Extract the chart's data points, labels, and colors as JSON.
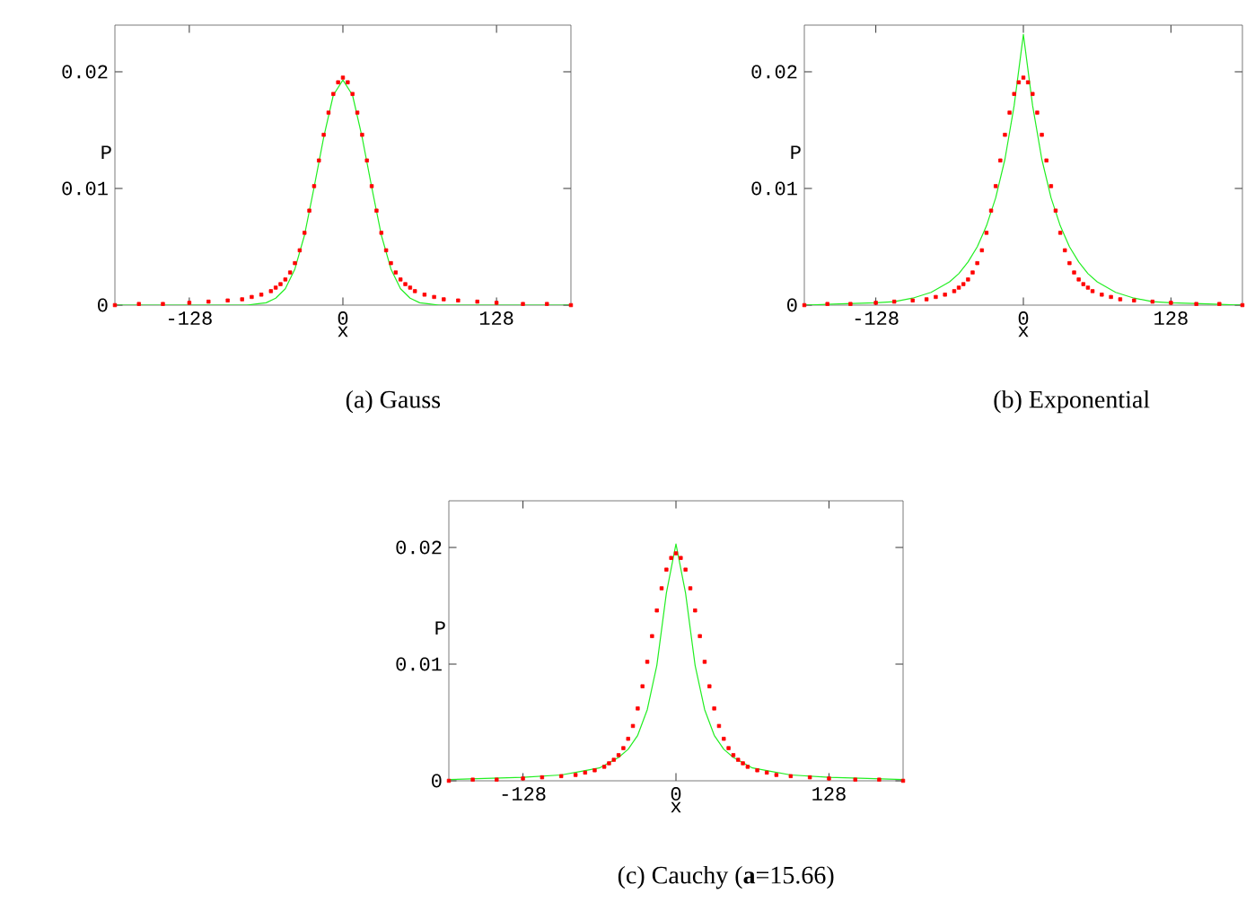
{
  "chart_data": [
    {
      "type": "line",
      "title": "(a) Gauss",
      "xlabel": "x",
      "ylabel": "P",
      "xlim": [
        -190,
        190
      ],
      "ylim": [
        0,
        0.024
      ],
      "xticks": [
        -128,
        0,
        128
      ],
      "yticks": [
        0,
        0.01,
        0.02
      ],
      "series": [
        {
          "type": "scatter",
          "marker": "square",
          "color": "#ff0000",
          "x": [
            -190,
            -170,
            -150,
            -128,
            -112,
            -96,
            -84,
            -76,
            -68,
            -60,
            -56,
            -52,
            -48,
            -44,
            -40,
            -36,
            -32,
            -28,
            -24,
            -20,
            -16,
            -12,
            -8,
            -4,
            0,
            4,
            8,
            12,
            16,
            20,
            24,
            28,
            32,
            36,
            40,
            44,
            48,
            52,
            56,
            60,
            68,
            76,
            84,
            96,
            112,
            128,
            150,
            170,
            190
          ],
          "values": [
            0,
            0.0001,
            0.0001,
            0.0002,
            0.0003,
            0.0004,
            0.0005,
            0.0007,
            0.0009,
            0.0012,
            0.0015,
            0.0018,
            0.0022,
            0.0028,
            0.0036,
            0.0047,
            0.0062,
            0.0081,
            0.0102,
            0.0124,
            0.0146,
            0.0165,
            0.0181,
            0.0191,
            0.0195,
            0.0191,
            0.0181,
            0.0165,
            0.0146,
            0.0124,
            0.0102,
            0.0081,
            0.0062,
            0.0047,
            0.0036,
            0.0028,
            0.0022,
            0.0018,
            0.0015,
            0.0012,
            0.0009,
            0.0007,
            0.0005,
            0.0004,
            0.0003,
            0.0002,
            0.0001,
            0.0001,
            0
          ]
        },
        {
          "color": "#22ee22",
          "x": [
            -190,
            -80,
            -72,
            -64,
            -56,
            -48,
            -40,
            -32,
            -24,
            -16,
            -8,
            0,
            8,
            16,
            24,
            32,
            40,
            48,
            56,
            64,
            72,
            80,
            190
          ],
          "values": [
            0,
            0,
            0.0001,
            0.0002,
            0.0006,
            0.0014,
            0.0031,
            0.006,
            0.0101,
            0.0144,
            0.018,
            0.0193,
            0.018,
            0.0144,
            0.0101,
            0.006,
            0.0031,
            0.0014,
            0.0006,
            0.0002,
            0.0001,
            0,
            0
          ]
        }
      ]
    },
    {
      "type": "line",
      "title": "(b) Exponential",
      "xlabel": "x",
      "ylabel": "P",
      "xlim": [
        -190,
        190
      ],
      "ylim": [
        0,
        0.024
      ],
      "xticks": [
        -128,
        0,
        128
      ],
      "yticks": [
        0,
        0.01,
        0.02
      ],
      "series": [
        {
          "type": "scatter",
          "marker": "square",
          "color": "#ff0000",
          "x": [
            -190,
            -170,
            -150,
            -128,
            -112,
            -96,
            -84,
            -76,
            -68,
            -60,
            -56,
            -52,
            -48,
            -44,
            -40,
            -36,
            -32,
            -28,
            -24,
            -20,
            -16,
            -12,
            -8,
            -4,
            0,
            4,
            8,
            12,
            16,
            20,
            24,
            28,
            32,
            36,
            40,
            44,
            48,
            52,
            56,
            60,
            68,
            76,
            84,
            96,
            112,
            128,
            150,
            170,
            190
          ],
          "values": [
            0,
            0.0001,
            0.0001,
            0.0002,
            0.0003,
            0.0004,
            0.0005,
            0.0007,
            0.0009,
            0.0012,
            0.0015,
            0.0018,
            0.0022,
            0.0028,
            0.0036,
            0.0047,
            0.0062,
            0.0081,
            0.0102,
            0.0124,
            0.0146,
            0.0165,
            0.0181,
            0.0191,
            0.0195,
            0.0191,
            0.0181,
            0.0165,
            0.0146,
            0.0124,
            0.0102,
            0.0081,
            0.0062,
            0.0047,
            0.0036,
            0.0028,
            0.0022,
            0.0018,
            0.0015,
            0.0012,
            0.0009,
            0.0007,
            0.0005,
            0.0004,
            0.0003,
            0.0002,
            0.0001,
            0.0001,
            0
          ]
        },
        {
          "color": "#22ee22",
          "x": [
            -190,
            -160,
            -128,
            -112,
            -96,
            -80,
            -64,
            -56,
            -48,
            -40,
            -32,
            -24,
            -16,
            -8,
            0,
            8,
            16,
            24,
            32,
            40,
            48,
            56,
            64,
            80,
            96,
            112,
            128,
            160,
            190
          ],
          "values": [
            0,
            0.0001,
            0.0002,
            0.0003,
            0.0006,
            0.0011,
            0.002,
            0.0027,
            0.0037,
            0.005,
            0.0068,
            0.0092,
            0.0125,
            0.0171,
            0.0232,
            0.0171,
            0.0125,
            0.0092,
            0.0068,
            0.005,
            0.0037,
            0.0027,
            0.002,
            0.0011,
            0.0006,
            0.0003,
            0.0002,
            0.0001,
            0
          ]
        }
      ]
    },
    {
      "type": "line",
      "title": "(c) Cauchy (**a**=15.66)",
      "xlabel": "x",
      "ylabel": "P",
      "xlim": [
        -190,
        190
      ],
      "ylim": [
        0,
        0.024
      ],
      "xticks": [
        -128,
        0,
        128
      ],
      "yticks": [
        0,
        0.01,
        0.02
      ],
      "series": [
        {
          "type": "scatter",
          "marker": "square",
          "color": "#ff0000",
          "x": [
            -190,
            -170,
            -150,
            -128,
            -112,
            -96,
            -84,
            -76,
            -68,
            -60,
            -56,
            -52,
            -48,
            -44,
            -40,
            -36,
            -32,
            -28,
            -24,
            -20,
            -16,
            -12,
            -8,
            -4,
            0,
            4,
            8,
            12,
            16,
            20,
            24,
            28,
            32,
            36,
            40,
            44,
            48,
            52,
            56,
            60,
            68,
            76,
            84,
            96,
            112,
            128,
            150,
            170,
            190
          ],
          "values": [
            0,
            0.0001,
            0.0001,
            0.0002,
            0.0003,
            0.0004,
            0.0005,
            0.0007,
            0.0009,
            0.0012,
            0.0015,
            0.0018,
            0.0022,
            0.0028,
            0.0036,
            0.0047,
            0.0062,
            0.0081,
            0.0102,
            0.0124,
            0.0146,
            0.0165,
            0.0181,
            0.0191,
            0.0195,
            0.0191,
            0.0181,
            0.0165,
            0.0146,
            0.0124,
            0.0102,
            0.0081,
            0.0062,
            0.0047,
            0.0036,
            0.0028,
            0.0022,
            0.0018,
            0.0015,
            0.0012,
            0.0009,
            0.0007,
            0.0005,
            0.0004,
            0.0003,
            0.0002,
            0.0001,
            0.0001,
            0
          ]
        },
        {
          "color": "#22ee22",
          "x": [
            -190,
            -160,
            -128,
            -96,
            -80,
            -64,
            -48,
            -40,
            -32,
            -24,
            -16,
            -8,
            0,
            8,
            16,
            24,
            32,
            40,
            48,
            64,
            80,
            96,
            128,
            160,
            190
          ],
          "values": [
            0.0001,
            0.0002,
            0.0003,
            0.0005,
            0.0008,
            0.0011,
            0.002,
            0.0027,
            0.0039,
            0.0061,
            0.0099,
            0.0161,
            0.0203,
            0.0161,
            0.0099,
            0.0061,
            0.0039,
            0.0027,
            0.002,
            0.0011,
            0.0008,
            0.0005,
            0.0003,
            0.0002,
            0.0001
          ]
        }
      ]
    }
  ]
}
